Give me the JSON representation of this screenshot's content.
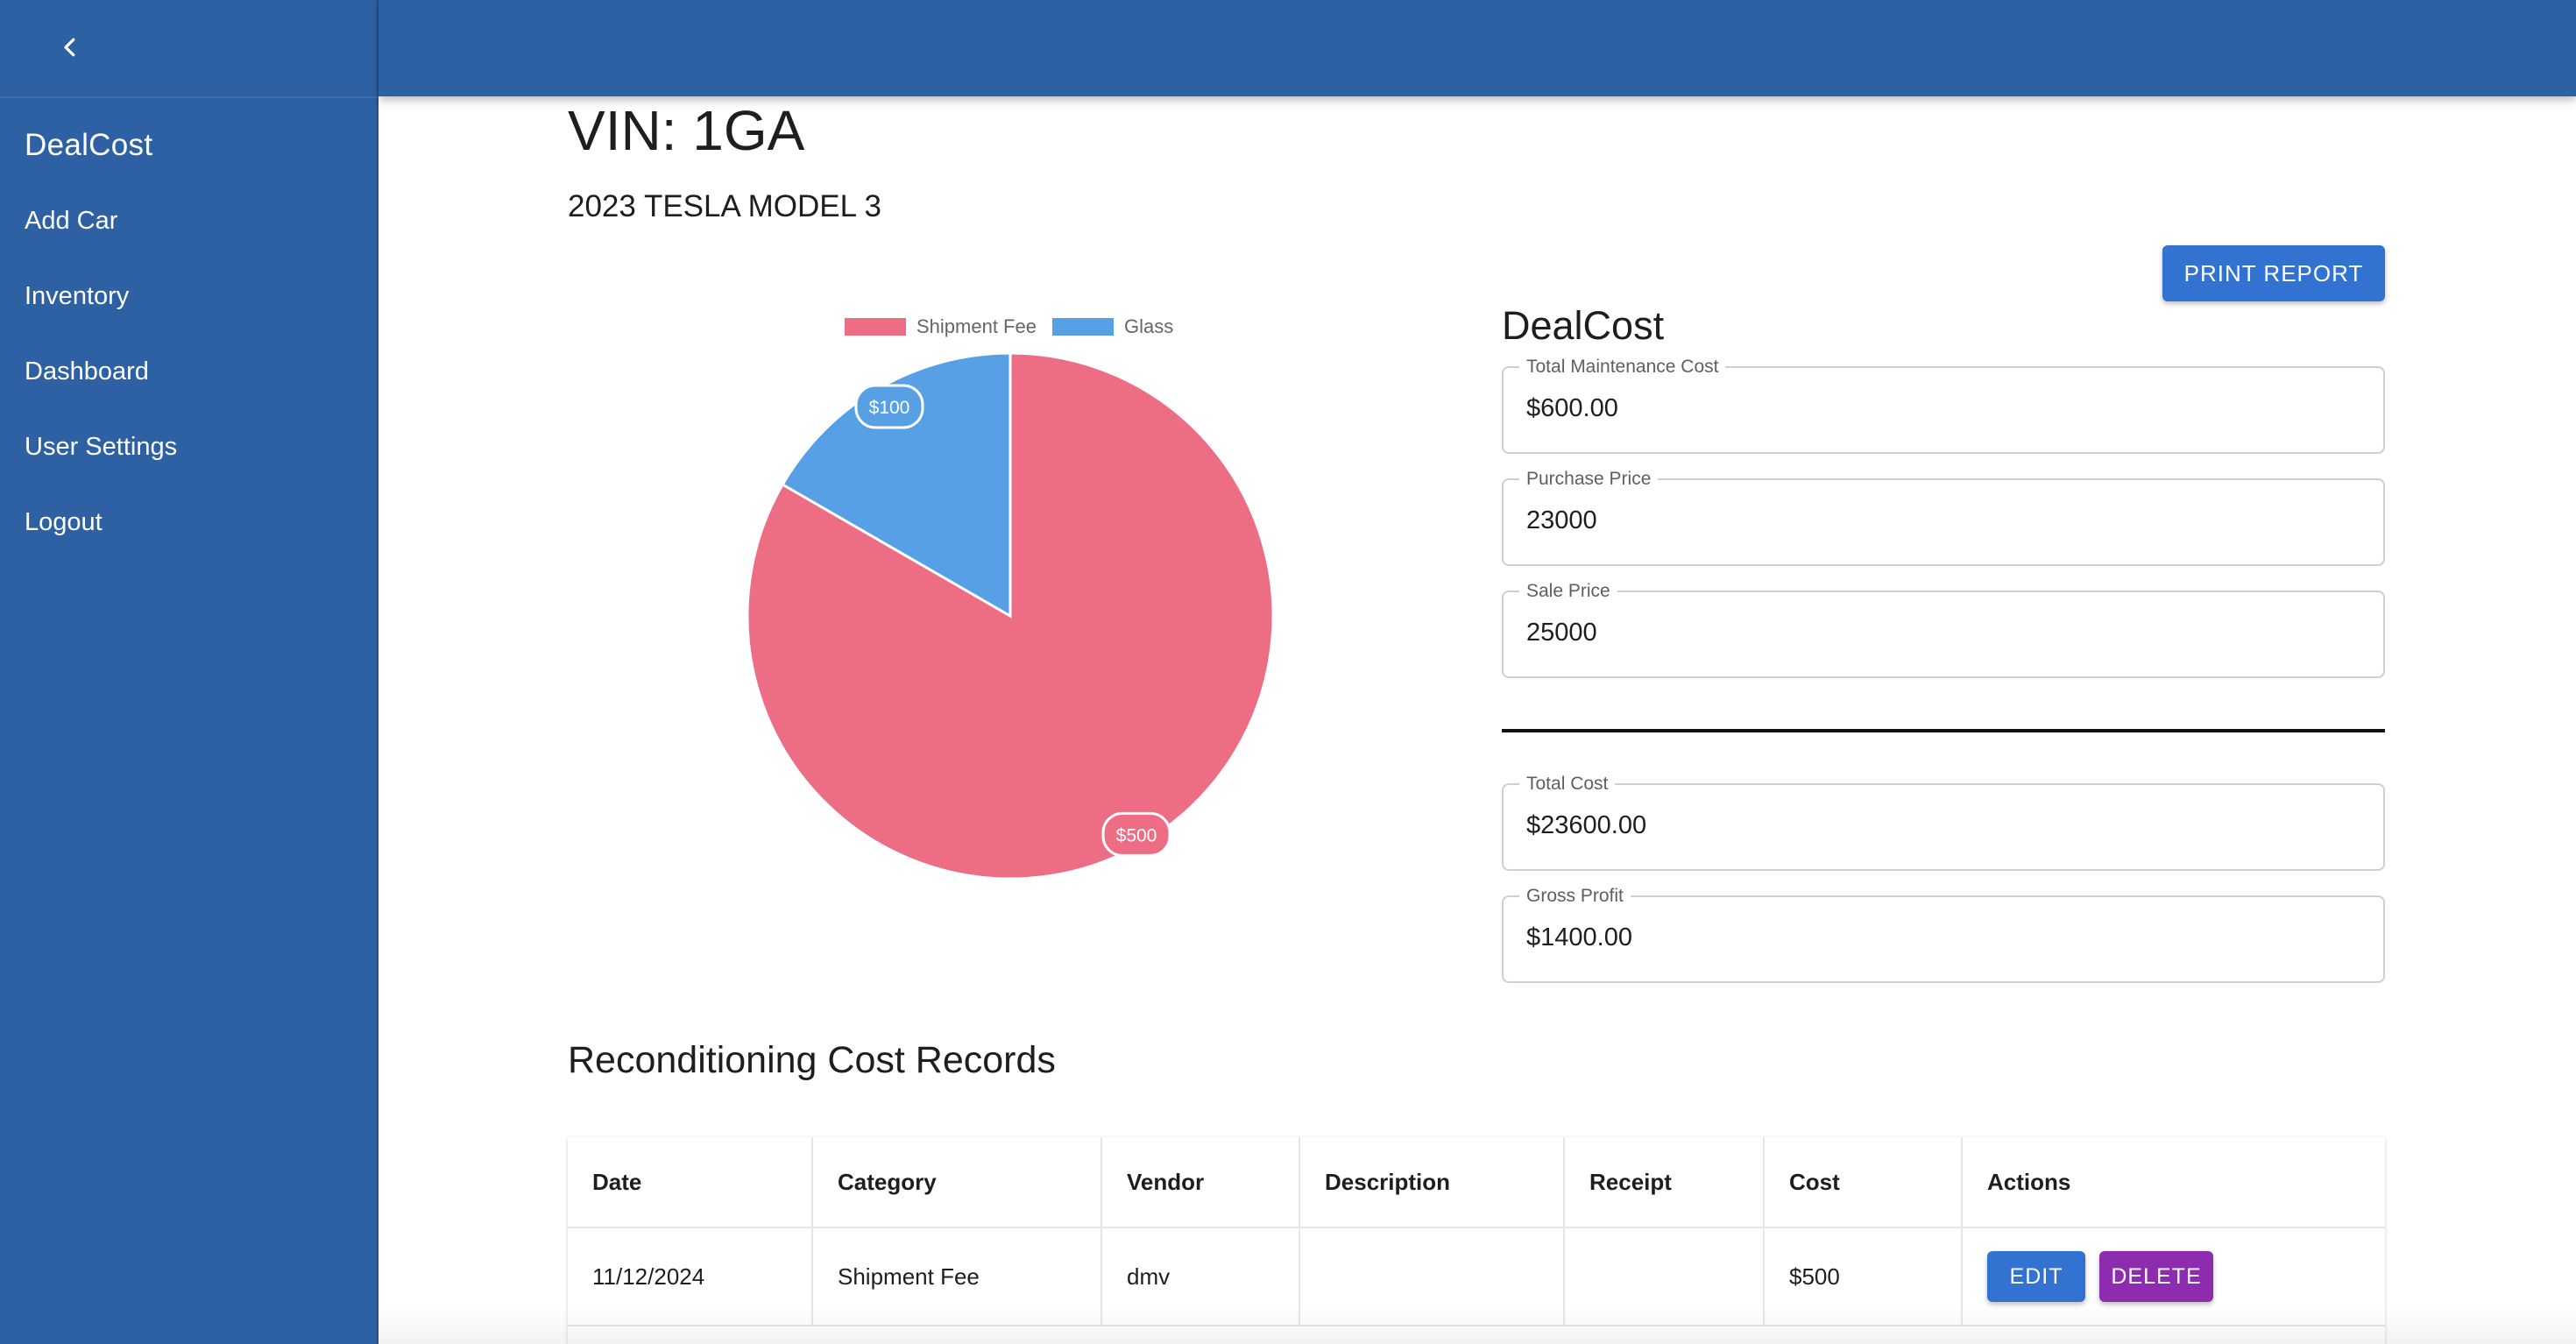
{
  "sidebar": {
    "collapse_icon": "chevron-left-icon",
    "brand": "DealCost",
    "items": [
      {
        "label": "Add Car"
      },
      {
        "label": "Inventory"
      },
      {
        "label": "Dashboard"
      },
      {
        "label": "User Settings"
      },
      {
        "label": "Logout"
      }
    ]
  },
  "header": {
    "vin": "VIN: 1GA",
    "car": "2023 TESLA MODEL 3",
    "print_label": "PRINT REPORT"
  },
  "chart_data": {
    "type": "pie",
    "categories": [
      "Shipment Fee",
      "Glass"
    ],
    "values": [
      500,
      100
    ],
    "data_labels": [
      "$500",
      "$100"
    ],
    "colors": [
      "#ed6d84",
      "#57a0e5"
    ],
    "legend_position": "top"
  },
  "dealcost": {
    "heading": "DealCost",
    "fields": [
      {
        "label": "Total Maintenance Cost",
        "value": "$600.00"
      },
      {
        "label": "Purchase Price",
        "value": "23000"
      },
      {
        "label": "Sale Price",
        "value": "25000"
      },
      {
        "label": "Total Cost",
        "value": "$23600.00"
      },
      {
        "label": "Gross Profit",
        "value": "$1400.00"
      }
    ]
  },
  "records": {
    "title": "Reconditioning Cost Records",
    "columns": [
      "Date",
      "Category",
      "Vendor",
      "Description",
      "Receipt",
      "Cost",
      "Actions"
    ],
    "rows": [
      {
        "date": "11/12/2024",
        "category": "Shipment Fee",
        "vendor": "dmv",
        "description": "",
        "receipt": "",
        "cost": "$500",
        "edit": "EDIT",
        "delete": "DELETE"
      }
    ]
  },
  "colors": {
    "primary": "#2e61a3",
    "button": "#3273d2",
    "delete": "#8e2cb0"
  }
}
